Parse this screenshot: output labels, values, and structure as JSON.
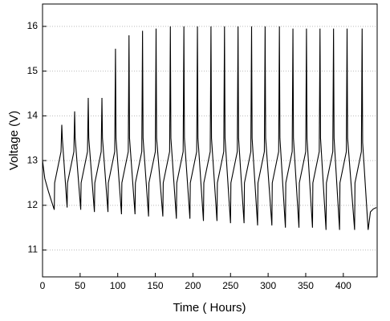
{
  "chart_data": {
    "type": "line",
    "x_label": "Time ( Hours)",
    "y_label": "Voltage (V)",
    "color": "#000000",
    "grid": true,
    "xlim": [
      0,
      445
    ],
    "ylim": [
      10.4,
      16.5
    ],
    "xticks": [
      0,
      50,
      100,
      150,
      200,
      250,
      300,
      350,
      400
    ],
    "yticks": [
      11,
      12,
      13,
      14,
      15,
      16
    ],
    "x": [
      0,
      3,
      8,
      15.6,
      16.1,
      24.6,
      25.6,
      26.3,
      32.7,
      33.2,
      41.7,
      42.7,
      43.4,
      50.8,
      51.3,
      59.8,
      60.8,
      61.5,
      69,
      69.5,
      78,
      79,
      79.7,
      87,
      87.5,
      96,
      97,
      97.7,
      105,
      105.5,
      114,
      115,
      115.7,
      123,
      123.5,
      132,
      133,
      133.7,
      141,
      141.5,
      150,
      151,
      151.7,
      160,
      160.5,
      169,
      170,
      170.7,
      178,
      178.5,
      187,
      188,
      188.7,
      196,
      196.5,
      205,
      206,
      206.7,
      214,
      214.5,
      223,
      224,
      224.7,
      232,
      232.5,
      241,
      242,
      242.7,
      250,
      250.5,
      259,
      260,
      260.7,
      268,
      268.5,
      277,
      278,
      278.7,
      286,
      286.5,
      295,
      296,
      296.7,
      305,
      305.5,
      314,
      315,
      315.7,
      323,
      323.5,
      332,
      333,
      333.7,
      341,
      341.5,
      350,
      351,
      351.7,
      359,
      359.5,
      368,
      369,
      369.7,
      377,
      377.5,
      386,
      387,
      387.7,
      395,
      395.5,
      404,
      405,
      405.7,
      415,
      415.5,
      424,
      425,
      425.7,
      433,
      436,
      440,
      444
    ],
    "values": [
      13.0,
      12.6,
      12.3,
      11.9,
      12.5,
      13.2,
      13.8,
      13.5,
      11.95,
      12.5,
      13.2,
      14.1,
      13.5,
      11.9,
      12.5,
      13.2,
      14.4,
      13.5,
      11.85,
      12.5,
      13.2,
      14.4,
      13.5,
      11.85,
      12.5,
      13.2,
      15.5,
      13.5,
      11.8,
      12.5,
      13.2,
      15.8,
      13.5,
      11.8,
      12.5,
      13.2,
      15.9,
      13.5,
      11.75,
      12.5,
      13.2,
      15.95,
      13.5,
      11.75,
      12.5,
      13.2,
      16.0,
      13.5,
      11.7,
      12.5,
      13.2,
      16.0,
      13.5,
      11.7,
      12.5,
      13.2,
      16.0,
      13.5,
      11.65,
      12.5,
      13.2,
      16.0,
      13.5,
      11.65,
      12.5,
      13.2,
      16.0,
      13.5,
      11.6,
      12.5,
      13.2,
      16.0,
      13.5,
      11.6,
      12.5,
      13.2,
      16.0,
      13.5,
      11.55,
      12.5,
      13.2,
      16.0,
      13.5,
      11.55,
      12.5,
      13.2,
      16.0,
      13.5,
      11.5,
      12.5,
      13.2,
      15.95,
      13.5,
      11.5,
      12.5,
      13.2,
      15.95,
      13.5,
      11.5,
      12.5,
      13.2,
      15.95,
      13.5,
      11.45,
      12.5,
      13.2,
      15.95,
      13.5,
      11.45,
      12.5,
      13.2,
      15.95,
      13.5,
      11.45,
      12.5,
      13.2,
      15.95,
      13.4,
      11.45,
      11.85,
      11.92,
      11.95
    ]
  }
}
